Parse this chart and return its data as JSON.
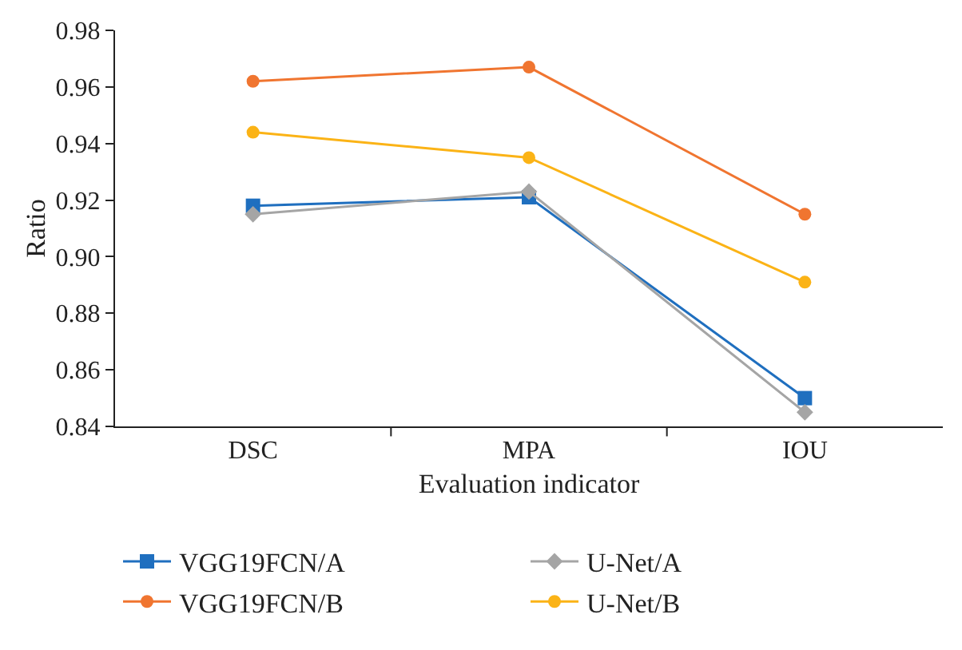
{
  "chart_data": {
    "type": "line",
    "xlabel": "Evaluation indicator",
    "ylabel": "Ratio",
    "categories": [
      "DSC",
      "MPA",
      "IOU"
    ],
    "series": [
      {
        "name": "VGG19FCN/A",
        "color": "#1f6fbf",
        "marker": "square",
        "values": [
          0.918,
          0.921,
          0.85
        ]
      },
      {
        "name": "U-Net/A",
        "color": "#a5a5a5",
        "marker": "diamond",
        "values": [
          0.915,
          0.923,
          0.845
        ]
      },
      {
        "name": "VGG19FCN/B",
        "color": "#f07530",
        "marker": "circle",
        "values": [
          0.962,
          0.967,
          0.915
        ]
      },
      {
        "name": "U-Net/B",
        "color": "#fbb316",
        "marker": "circle",
        "values": [
          0.944,
          0.935,
          0.891
        ]
      }
    ],
    "ylim": [
      0.84,
      0.98
    ],
    "yticks": [
      {
        "value": 0.84,
        "label": "0.84"
      },
      {
        "value": 0.86,
        "label": "0.86"
      },
      {
        "value": 0.88,
        "label": "0.88"
      },
      {
        "value": 0.9,
        "label": "0.90"
      },
      {
        "value": 0.92,
        "label": "0.92"
      },
      {
        "value": 0.94,
        "label": "0.94"
      },
      {
        "value": 0.96,
        "label": "0.96"
      },
      {
        "value": 0.98,
        "label": "0.98"
      }
    ],
    "grid": false,
    "legend": "bottom",
    "line_style": "solid"
  }
}
